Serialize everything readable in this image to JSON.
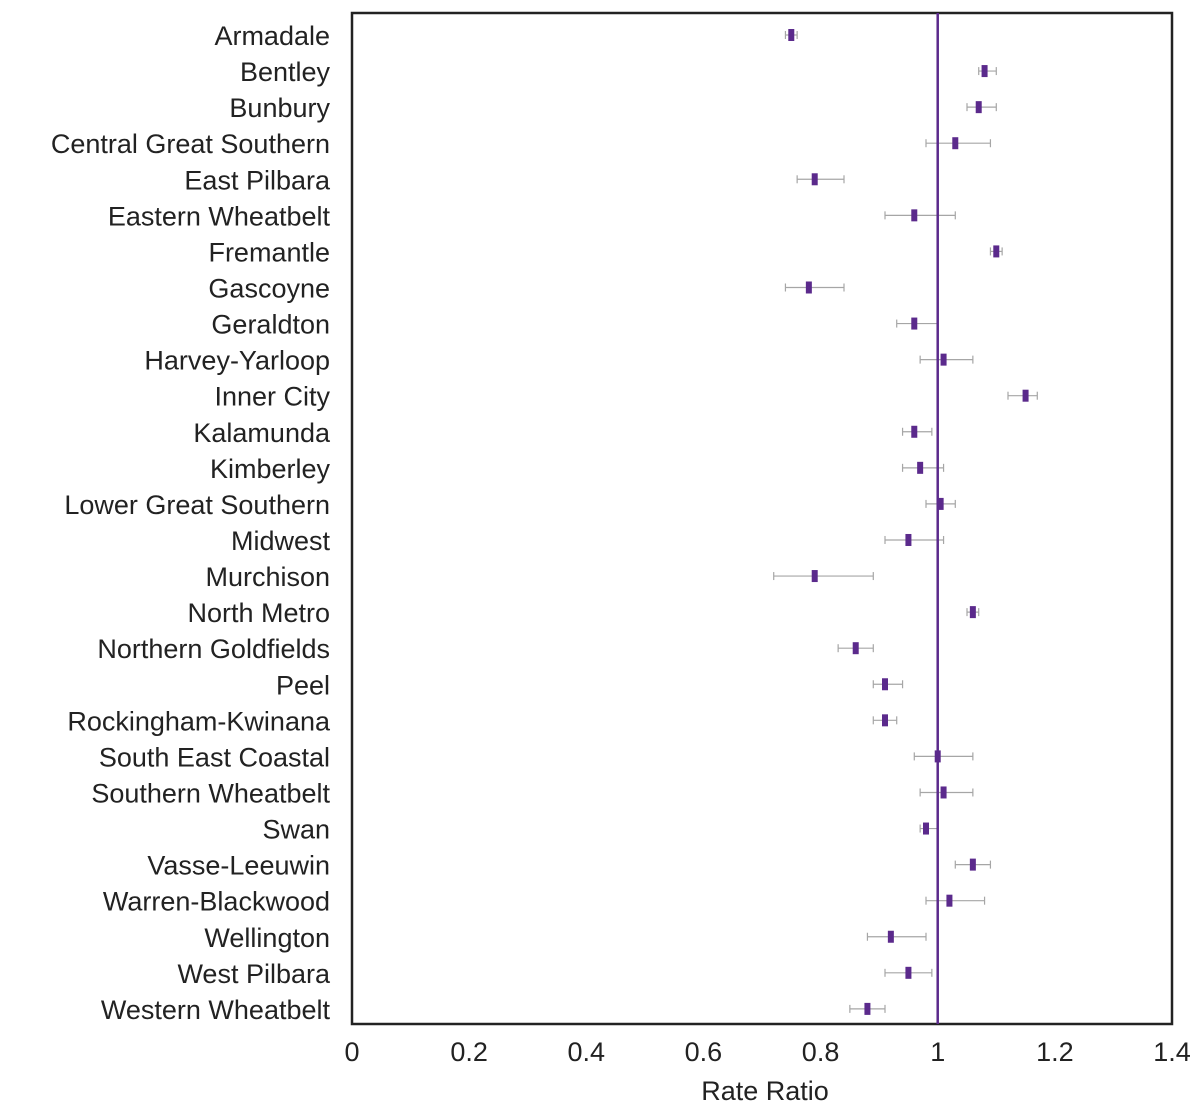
{
  "colors": {
    "point": "#5b2a8c",
    "reference_line": "#5b2a8c",
    "error_bar": "#a6a6a6",
    "axes": "#222222",
    "background": "#ffffff"
  },
  "chart_data": {
    "type": "scatter",
    "orientation": "horizontal",
    "style": "forest-plot with error bars",
    "xlabel": "Rate Ratio",
    "ylabel": "",
    "title": "",
    "xlim": [
      0,
      1.4
    ],
    "xticks": [
      0,
      0.2,
      0.4,
      0.6,
      0.8,
      1,
      1.2,
      1.4
    ],
    "xtick_labels": [
      "0",
      "0.2",
      "0.4",
      "0.6",
      "0.8",
      "1",
      "1.2",
      "1.4"
    ],
    "reference_line": 1.0,
    "grid": false,
    "legend": "none",
    "categories": [
      "Armadale",
      "Bentley",
      "Bunbury",
      "Central Great Southern",
      "East Pilbara",
      "Eastern Wheatbelt",
      "Fremantle",
      "Gascoyne",
      "Geraldton",
      "Harvey-Yarloop",
      "Inner City",
      "Kalamunda",
      "Kimberley",
      "Lower Great Southern",
      "Midwest",
      "Murchison",
      "North Metro",
      "Northern Goldfields",
      "Peel",
      "Rockingham-Kwinana",
      "South East Coastal",
      "Southern Wheatbelt",
      "Swan",
      "Vasse-Leeuwin",
      "Warren-Blackwood",
      "Wellington",
      "West Pilbara",
      "Western Wheatbelt"
    ],
    "values": [
      0.75,
      1.08,
      1.07,
      1.03,
      0.79,
      0.96,
      1.1,
      0.78,
      0.96,
      1.01,
      1.15,
      0.96,
      0.97,
      1.005,
      0.95,
      0.79,
      1.06,
      0.86,
      0.91,
      0.91,
      1.0,
      1.01,
      0.98,
      1.06,
      1.02,
      0.92,
      0.95,
      0.88
    ],
    "lower": [
      0.74,
      1.07,
      1.05,
      0.98,
      0.76,
      0.91,
      1.09,
      0.74,
      0.93,
      0.97,
      1.12,
      0.94,
      0.94,
      0.98,
      0.91,
      0.72,
      1.05,
      0.83,
      0.89,
      0.89,
      0.96,
      0.97,
      0.97,
      1.03,
      0.98,
      0.88,
      0.91,
      0.85
    ],
    "upper": [
      0.76,
      1.1,
      1.1,
      1.09,
      0.84,
      1.03,
      1.11,
      0.84,
      1.0,
      1.06,
      1.17,
      0.99,
      1.01,
      1.03,
      1.01,
      0.89,
      1.07,
      0.89,
      0.94,
      0.93,
      1.06,
      1.06,
      1.0,
      1.09,
      1.08,
      0.98,
      0.99,
      0.91
    ]
  }
}
